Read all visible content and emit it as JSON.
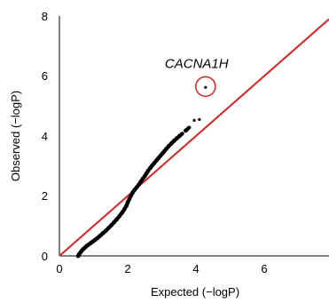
{
  "chart_data": {
    "type": "scatter",
    "title": "",
    "xlabel": "Expected (−logP)",
    "ylabel": "Observed (−logP)",
    "xlim": [
      0,
      7.9
    ],
    "ylim": [
      0,
      8
    ],
    "x_ticks": [
      "0",
      "2",
      "4",
      "6"
    ],
    "y_ticks": [
      "0",
      "2",
      "4",
      "6",
      "8"
    ],
    "reference_line": {
      "slope": 1,
      "intercept": 0,
      "color": "#e02020"
    },
    "point_color": "#000000",
    "series": [
      {
        "points": [
          [
            0.55,
            0.0
          ],
          [
            0.58,
            0.06
          ],
          [
            0.62,
            0.12
          ],
          [
            0.66,
            0.18
          ],
          [
            0.7,
            0.23
          ],
          [
            0.75,
            0.28
          ],
          [
            0.8,
            0.33
          ],
          [
            0.86,
            0.38
          ],
          [
            0.92,
            0.43
          ],
          [
            0.98,
            0.48
          ],
          [
            1.05,
            0.54
          ],
          [
            1.12,
            0.6
          ],
          [
            1.2,
            0.68
          ],
          [
            1.28,
            0.76
          ],
          [
            1.36,
            0.84
          ],
          [
            1.44,
            0.93
          ],
          [
            1.52,
            1.02
          ],
          [
            1.6,
            1.12
          ],
          [
            1.68,
            1.22
          ],
          [
            1.76,
            1.33
          ],
          [
            1.84,
            1.45
          ],
          [
            1.9,
            1.55
          ],
          [
            1.96,
            1.67
          ],
          [
            2.0,
            1.78
          ],
          [
            2.05,
            1.9
          ],
          [
            2.1,
            2.02
          ],
          [
            2.15,
            2.12
          ],
          [
            2.2,
            2.2
          ],
          [
            2.26,
            2.28
          ],
          [
            2.32,
            2.37
          ],
          [
            2.38,
            2.47
          ],
          [
            2.44,
            2.57
          ],
          [
            2.5,
            2.66
          ],
          [
            2.55,
            2.75
          ],
          [
            2.6,
            2.84
          ],
          [
            2.66,
            2.93
          ],
          [
            2.72,
            3.02
          ],
          [
            2.78,
            3.1
          ],
          [
            2.84,
            3.18
          ],
          [
            2.9,
            3.26
          ],
          [
            2.96,
            3.34
          ],
          [
            3.02,
            3.42
          ],
          [
            3.08,
            3.5
          ],
          [
            3.14,
            3.58
          ],
          [
            3.2,
            3.66
          ],
          [
            3.28,
            3.75
          ],
          [
            3.36,
            3.84
          ],
          [
            3.44,
            3.92
          ],
          [
            3.52,
            4.0
          ],
          [
            3.6,
            4.08
          ],
          [
            3.7,
            4.18
          ],
          [
            3.8,
            4.28
          ],
          [
            3.95,
            4.52
          ],
          [
            4.1,
            4.55
          ]
        ]
      }
    ],
    "annotations": [
      {
        "text": "CACNA1H",
        "x": 4.28,
        "y": 5.62,
        "circled": true
      }
    ]
  }
}
